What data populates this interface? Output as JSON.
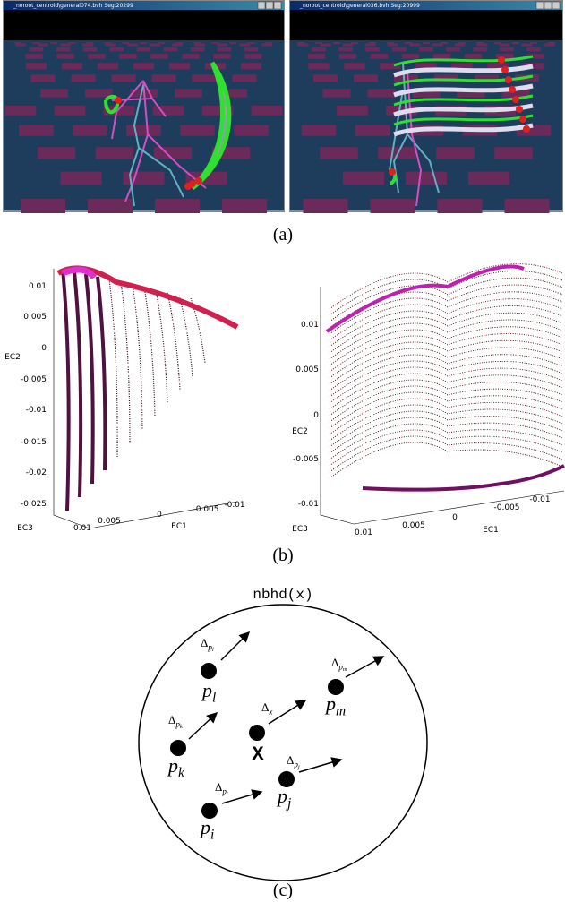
{
  "panel_a": {
    "label": "(a)",
    "windows": [
      {
        "title": "_noroot_centroid\\general074.bvh Seg:20299"
      },
      {
        "title": "_noroot_centroid\\general036.bvh Seg:20999"
      }
    ]
  },
  "panel_b": {
    "label": "(b)",
    "plots": [
      {
        "yticks": [
          "0.01",
          "0.005",
          "0",
          "-0.005",
          "-0.01",
          "-0.015",
          "-0.02",
          "-0.025"
        ],
        "xticks": [
          "0.01",
          "0.005",
          "0",
          "-0.005",
          "-0.01"
        ],
        "ylabel": "EC2",
        "zlabel": "EC3",
        "xlabel": "EC1"
      },
      {
        "yticks": [
          "0.01",
          "0.005",
          "0",
          "-0.005",
          "-0.01"
        ],
        "xticks": [
          "0.01",
          "0.005",
          "0",
          "-0.005",
          "-0.01"
        ],
        "ylabel": "EC2",
        "zlabel": "EC3",
        "xlabel": "EC1"
      }
    ]
  },
  "panel_c": {
    "label": "(c)",
    "title": "nbhd(x)",
    "center": "X",
    "points": [
      {
        "base": "p",
        "sub": "l",
        "delta": {
          "base": "Δ",
          "sub": "p",
          "subsub": "l"
        }
      },
      {
        "base": "p",
        "sub": "m",
        "delta": {
          "base": "Δ",
          "sub": "p",
          "subsub": "m"
        }
      },
      {
        "base": "p",
        "sub": "k",
        "delta": {
          "base": "Δ",
          "sub": "p",
          "subsub": "k"
        }
      },
      {
        "base": "p",
        "sub": "j",
        "delta": {
          "base": "Δ",
          "sub": "p",
          "subsub": "j"
        }
      },
      {
        "base": "p",
        "sub": "i",
        "delta": {
          "base": "Δ",
          "sub": "p",
          "subsub": "i"
        }
      }
    ],
    "center_delta": {
      "base": "Δ",
      "sub": "x"
    }
  }
}
